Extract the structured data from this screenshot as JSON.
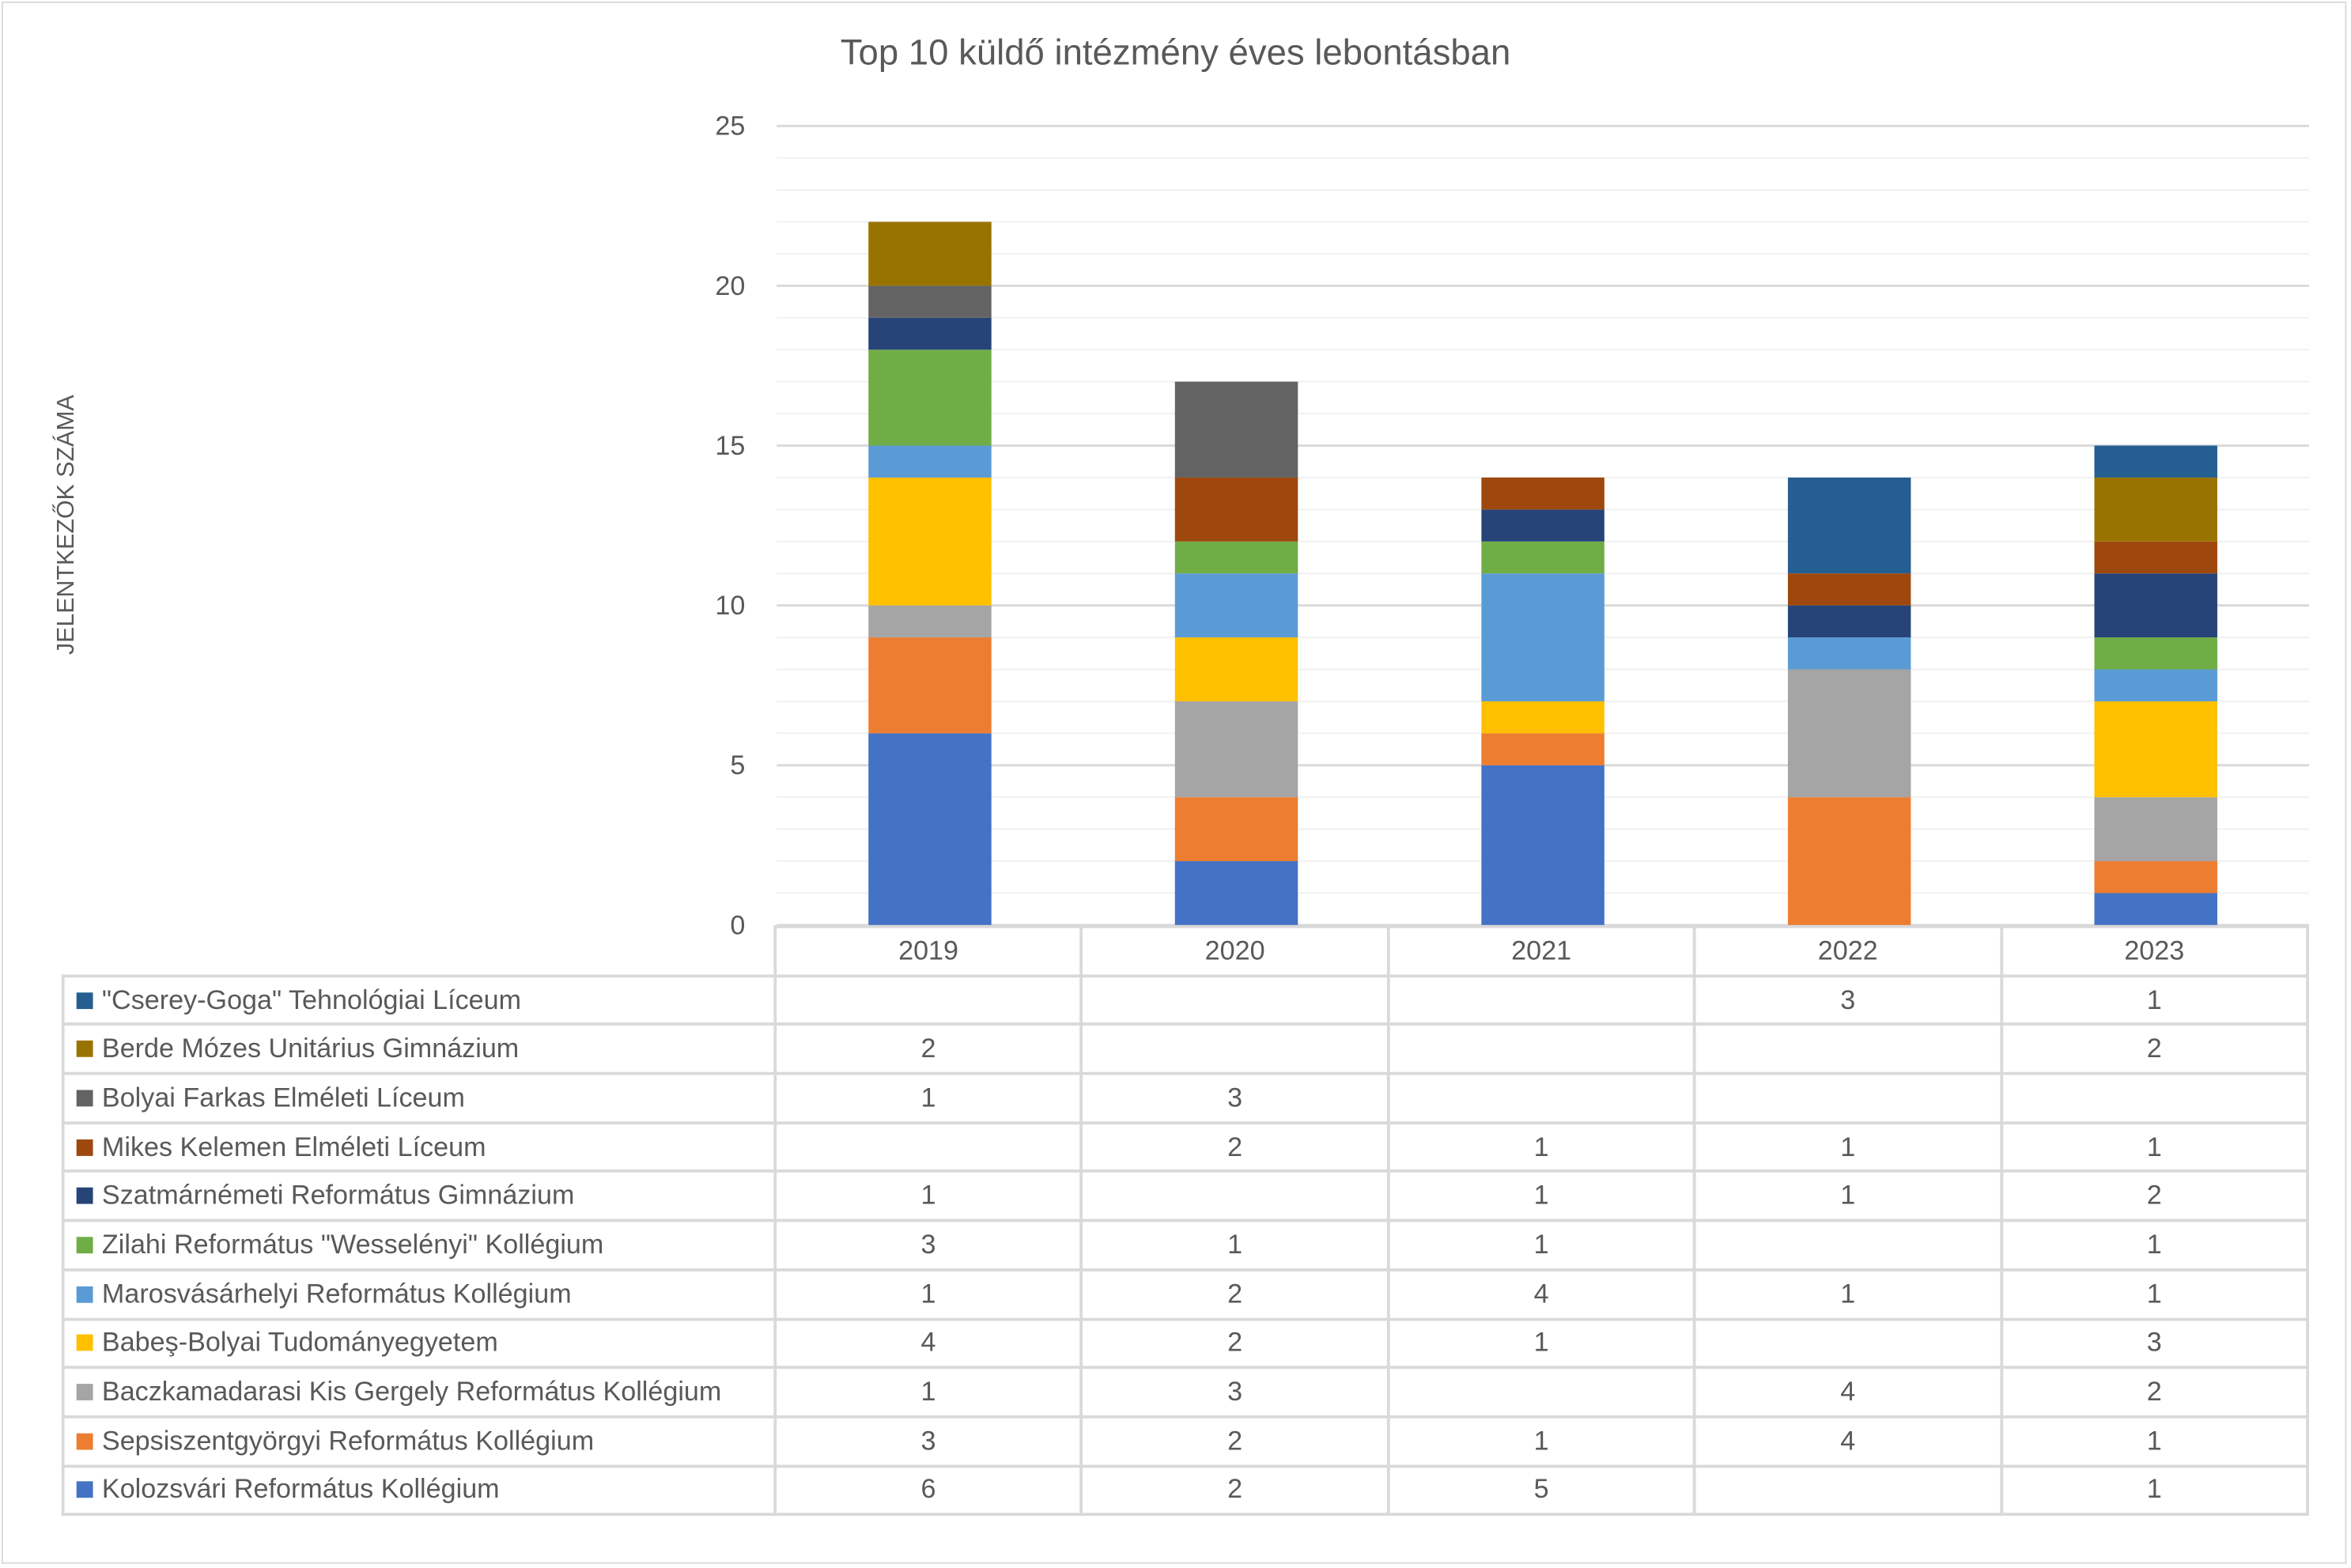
{
  "chart_data": {
    "type": "bar",
    "stacked": true,
    "title": "Top 10 küldő intézmény éves lebontásban",
    "xlabel": "",
    "ylabel": "JELENTKEZŐK SZÁMA",
    "ylim": [
      0,
      25
    ],
    "yticks": [
      "0",
      "5",
      "10",
      "15",
      "20",
      "25"
    ],
    "grid": true,
    "legend": "data-table",
    "categories": [
      "2019",
      "2020",
      "2021",
      "2022",
      "2023"
    ],
    "series": [
      {
        "name": "Kolozsvári Református Kollégium",
        "color": "#4472C4",
        "values": [
          6,
          2,
          5,
          null,
          1
        ]
      },
      {
        "name": "Sepsiszentgyörgyi Református Kollégium",
        "color": "#ED7D31",
        "values": [
          3,
          2,
          1,
          4,
          1
        ]
      },
      {
        "name": "Baczkamadarasi Kis Gergely Református Kollégium",
        "color": "#A5A5A5",
        "values": [
          1,
          3,
          null,
          4,
          2
        ]
      },
      {
        "name": "Babeş-Bolyai Tudományegyetem",
        "color": "#FFC000",
        "values": [
          4,
          2,
          1,
          null,
          3
        ]
      },
      {
        "name": "Marosvásárhelyi Református Kollégium",
        "color": "#5B9BD5",
        "values": [
          1,
          2,
          4,
          1,
          1
        ]
      },
      {
        "name": "Zilahi Református \"Wesselényi\" Kollégium",
        "color": "#70AD47",
        "values": [
          3,
          1,
          1,
          null,
          1
        ]
      },
      {
        "name": "Szatmárnémeti Református Gimnázium",
        "color": "#264478",
        "values": [
          1,
          null,
          1,
          1,
          2
        ]
      },
      {
        "name": "Mikes Kelemen Elméleti Líceum",
        "color": "#9E480E",
        "values": [
          null,
          2,
          1,
          1,
          1
        ]
      },
      {
        "name": "Bolyai Farkas Elméleti Líceum",
        "color": "#636363",
        "values": [
          1,
          3,
          null,
          null,
          null
        ]
      },
      {
        "name": "Berde Mózes Unitárius Gimnázium",
        "color": "#997300",
        "values": [
          2,
          null,
          null,
          null,
          2
        ]
      },
      {
        "name": "\"Cserey-Goga\" Tehnológiai Líceum",
        "color": "#255E91",
        "values": [
          null,
          null,
          null,
          3,
          1
        ]
      }
    ]
  }
}
